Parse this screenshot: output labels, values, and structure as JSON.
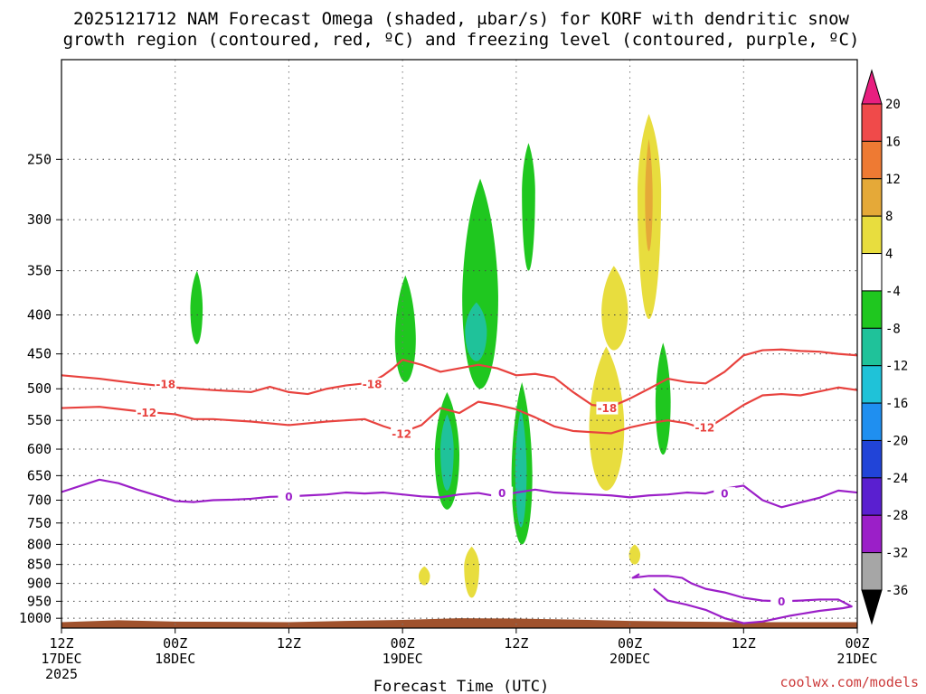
{
  "title_line1": "2025121712 NAM Forecast Omega (shaded, μbar/s) for KORF with dendritic snow",
  "title_line2": "growth region (contoured, red, ºC) and freezing level (contoured, purple, ºC)",
  "credit": "coolwx.com/models",
  "chart_data": {
    "type": "heatmap",
    "title": "2025121712 NAM Forecast Omega (shaded, μbar/s) for KORF with dendritic snow growth region (contoured, red, ºC) and freezing level (contoured, purple, ºC)",
    "xlabel": "Forecast Time (UTC)",
    "ylabel": "",
    "x_ticks": [
      {
        "hour": 0,
        "lines": [
          "12Z",
          "17DEC",
          "2025"
        ]
      },
      {
        "hour": 12,
        "lines": [
          "00Z",
          "18DEC"
        ]
      },
      {
        "hour": 24,
        "lines": [
          "12Z"
        ]
      },
      {
        "hour": 36,
        "lines": [
          "00Z",
          "19DEC"
        ]
      },
      {
        "hour": 48,
        "lines": [
          "12Z"
        ]
      },
      {
        "hour": 60,
        "lines": [
          "00Z",
          "20DEC"
        ]
      },
      {
        "hour": 72,
        "lines": [
          "12Z"
        ]
      },
      {
        "hour": 84,
        "lines": [
          "00Z",
          "21DEC"
        ]
      }
    ],
    "xlim_hours": [
      0,
      84
    ],
    "y_ticks": [
      "250",
      "300",
      "350",
      "400",
      "450",
      "500",
      "550",
      "600",
      "650",
      "700",
      "750",
      "800",
      "850",
      "900",
      "950",
      "1000"
    ],
    "ylim_hpa": [
      1030,
      185
    ],
    "y_scale": "log-pressure",
    "grid": true,
    "colorbar": {
      "labels": [
        "20",
        "16",
        "12",
        "8",
        "4",
        "-4",
        "-8",
        "-12",
        "-16",
        "-20",
        "-24",
        "-28",
        "-32",
        "-36"
      ],
      "bins": [
        {
          "lo": 20,
          "hi": 99,
          "color": "#e81f7f"
        },
        {
          "lo": 16,
          "hi": 20,
          "color": "#f04a4a"
        },
        {
          "lo": 12,
          "hi": 16,
          "color": "#ee7a33"
        },
        {
          "lo": 8,
          "hi": 12,
          "color": "#e5a938"
        },
        {
          "lo": 4,
          "hi": 8,
          "color": "#e8dd3e"
        },
        {
          "lo": -4,
          "hi": 4,
          "color": "#ffffff"
        },
        {
          "lo": -8,
          "hi": -4,
          "color": "#1fc71f"
        },
        {
          "lo": -12,
          "hi": -8,
          "color": "#1fc29a"
        },
        {
          "lo": -16,
          "hi": -12,
          "color": "#1fc2d8"
        },
        {
          "lo": -20,
          "hi": -16,
          "color": "#1f8ff0"
        },
        {
          "lo": -24,
          "hi": -20,
          "color": "#2144d8"
        },
        {
          "lo": -28,
          "hi": -24,
          "color": "#5a1fd0"
        },
        {
          "lo": -32,
          "hi": -28,
          "color": "#9b1fc8"
        },
        {
          "lo": -36,
          "hi": -32,
          "color": "#a6a6a6"
        },
        {
          "lo": -99,
          "hi": -36,
          "color": "#000000"
        }
      ]
    },
    "omega_features": [
      {
        "range": "-8 to -4",
        "color": "#1fc71f",
        "x_hours": [
          13.6,
          14.3,
          14.9
        ],
        "p_hpa": [
          350,
          392,
          437
        ]
      },
      {
        "range": "-8 to -4",
        "color": "#1fc71f",
        "x_hours": [
          35.2,
          36.3,
          37.4
        ],
        "p_hpa": [
          355,
          430,
          490
        ]
      },
      {
        "range": "-8 to -4",
        "color": "#1fc71f",
        "x_hours": [
          42.3,
          44.2,
          46.1
        ],
        "p_hpa": [
          265,
          380,
          500
        ]
      },
      {
        "range": "-8 to -4",
        "color": "#1fc71f",
        "x_hours": [
          48.6,
          49.3,
          50.0
        ],
        "p_hpa": [
          238,
          275,
          350
        ]
      },
      {
        "range": "-12 to -8",
        "color": "#1fc29a",
        "x_hours": [
          42.6,
          43.8,
          44.9
        ],
        "p_hpa": [
          385,
          420,
          460
        ]
      },
      {
        "range": "-8 to -4",
        "color": "#1fc71f",
        "x_hours": [
          39.4,
          40.7,
          42.0
        ],
        "p_hpa": [
          505,
          610,
          720
        ]
      },
      {
        "range": "-12 to -8",
        "color": "#1fc29a",
        "x_hours": [
          40.0,
          40.7,
          41.4
        ],
        "p_hpa": [
          540,
          600,
          680
        ]
      },
      {
        "range": "-8 to -4",
        "color": "#1fc71f",
        "x_hours": [
          47.5,
          48.6,
          49.7
        ],
        "p_hpa": [
          490,
          650,
          800
        ]
      },
      {
        "range": "-12 to -8",
        "color": "#1fc29a",
        "x_hours": [
          47.9,
          48.5,
          49.1
        ],
        "p_hpa": [
          530,
          640,
          760
        ]
      },
      {
        "range": "-8 to -4",
        "color": "#1fc71f",
        "x_hours": [
          62.7,
          63.5,
          64.3
        ],
        "p_hpa": [
          435,
          520,
          610
        ]
      },
      {
        "range": "4 to 8",
        "color": "#e8dd3e",
        "x_hours": [
          55.7,
          57.5,
          59.4
        ],
        "p_hpa": [
          440,
          560,
          680
        ]
      },
      {
        "range": "4 to 8",
        "color": "#e8dd3e",
        "x_hours": [
          57.0,
          58.3,
          59.8
        ],
        "p_hpa": [
          345,
          395,
          445
        ]
      },
      {
        "range": "4 to 8",
        "color": "#e8dd3e",
        "x_hours": [
          60.8,
          62.0,
          63.3
        ],
        "p_hpa": [
          218,
          275,
          405
        ]
      },
      {
        "range": "8 to 12",
        "color": "#e5a938",
        "x_hours": [
          61.6,
          62.0,
          62.4
        ],
        "p_hpa": [
          235,
          280,
          330
        ]
      },
      {
        "range": "4 to 8",
        "color": "#e8dd3e",
        "x_hours": [
          42.5,
          43.3,
          44.1
        ],
        "p_hpa": [
          805,
          855,
          940
        ]
      },
      {
        "range": "4 to 8",
        "color": "#e8dd3e",
        "x_hours": [
          37.7,
          38.3,
          38.9
        ],
        "p_hpa": [
          855,
          880,
          905
        ]
      },
      {
        "range": "4 to 8",
        "color": "#e8dd3e",
        "x_hours": [
          59.9,
          60.5,
          61.1
        ],
        "p_hpa": [
          800,
          825,
          850
        ]
      }
    ],
    "series": [
      {
        "name": "-18",
        "color": "#e8423e",
        "x": [
          0,
          4,
          8,
          12,
          16,
          20,
          22,
          24,
          26,
          28,
          30,
          32,
          33,
          34,
          35,
          36,
          38,
          40,
          42,
          44,
          46,
          48,
          50,
          52,
          54,
          56,
          58,
          60,
          62,
          64,
          66,
          68,
          70,
          72,
          74,
          76,
          78,
          80,
          82,
          84
        ],
        "y": [
          480,
          485,
          492,
          498,
          502,
          505,
          497,
          505,
          508,
          500,
          495,
          492,
          488,
          480,
          470,
          458,
          465,
          475,
          470,
          465,
          470,
          480,
          478,
          483,
          505,
          525,
          528,
          515,
          500,
          485,
          490,
          492,
          475,
          452,
          445,
          444,
          446,
          447,
          450,
          452
        ]
      },
      {
        "name": "-12",
        "color": "#e8423e",
        "x": [
          0,
          4,
          8,
          12,
          14,
          16,
          20,
          24,
          28,
          30,
          32,
          34,
          36,
          38,
          40,
          42,
          44,
          46,
          48,
          50,
          52,
          54,
          56,
          58,
          60,
          62,
          64,
          66,
          68,
          70,
          72,
          74,
          76,
          78,
          80,
          82,
          84
        ],
        "y": [
          530,
          528,
          535,
          540,
          548,
          548,
          552,
          558,
          552,
          550,
          548,
          560,
          570,
          558,
          530,
          538,
          520,
          525,
          532,
          545,
          560,
          568,
          570,
          572,
          562,
          555,
          550,
          555,
          565,
          545,
          525,
          510,
          508,
          510,
          504,
          498,
          502
        ]
      },
      {
        "name": "0",
        "color": "#9b1fc8",
        "x": [
          0,
          4,
          6,
          8,
          10,
          12,
          14,
          16,
          18,
          20,
          22,
          24,
          26,
          28,
          30,
          32,
          34,
          36,
          38,
          40,
          42,
          44,
          46,
          48,
          50,
          52,
          54,
          56,
          58,
          60,
          62,
          64,
          66,
          68,
          70,
          72,
          74,
          76,
          78,
          80,
          82,
          84
        ],
        "y": [
          683,
          658,
          665,
          678,
          690,
          702,
          704,
          700,
          699,
          697,
          693,
          692,
          690,
          688,
          684,
          686,
          684,
          688,
          692,
          694,
          688,
          685,
          692,
          684,
          678,
          684,
          686,
          688,
          690,
          694,
          690,
          688,
          684,
          686,
          676,
          670,
          700,
          715,
          705,
          695,
          680,
          684
        ]
      },
      {
        "name": "0",
        "color": "#9b1fc8",
        "x": [
          61.0,
          60.3,
          62.0,
          64.0,
          65.5,
          66.5,
          68.0,
          70.0,
          72.0,
          74.0,
          76.0,
          78.0,
          80.0,
          82.0,
          83.4,
          82.5,
          80.0,
          77.0,
          74.0,
          72.0,
          70.0,
          68.0,
          66.0,
          64.0,
          62.5
        ],
        "y": [
          875,
          885,
          880,
          880,
          885,
          900,
          915,
          925,
          940,
          948,
          950,
          948,
          945,
          945,
          965,
          970,
          978,
          992,
          1010,
          1015,
          1000,
          975,
          960,
          948,
          915
        ]
      }
    ],
    "labels": [
      {
        "text": "-18",
        "color": "red",
        "x_hours": 11,
        "p_hpa": 493
      },
      {
        "text": "-18",
        "color": "red",
        "x_hours": 32.8,
        "p_hpa": 493
      },
      {
        "text": "-18",
        "color": "red",
        "x_hours": 57.6,
        "p_hpa": 530
      },
      {
        "text": "-12",
        "color": "red",
        "x_hours": 9,
        "p_hpa": 537
      },
      {
        "text": "-12",
        "color": "red",
        "x_hours": 35.9,
        "p_hpa": 573
      },
      {
        "text": "-12",
        "color": "red",
        "x_hours": 67.9,
        "p_hpa": 562
      },
      {
        "text": "0",
        "color": "purple",
        "x_hours": 24.0,
        "p_hpa": 692
      },
      {
        "text": "0",
        "color": "purple",
        "x_hours": 46.5,
        "p_hpa": 685
      },
      {
        "text": "0",
        "color": "purple",
        "x_hours": 70.0,
        "p_hpa": 686
      },
      {
        "text": "0",
        "color": "purple",
        "x_hours": 76.0,
        "p_hpa": 950
      }
    ],
    "terrain": {
      "color": "#a0522d",
      "x_hours": [
        0,
        6,
        12,
        18,
        24,
        30,
        36,
        42,
        48,
        54,
        60,
        66,
        72,
        78,
        84
      ],
      "p_hpa": [
        1012,
        1006,
        1010,
        1011,
        1012,
        1008,
        1005,
        1000,
        1001,
        1004,
        1008,
        1010,
        1012,
        1012,
        1012
      ]
    }
  }
}
